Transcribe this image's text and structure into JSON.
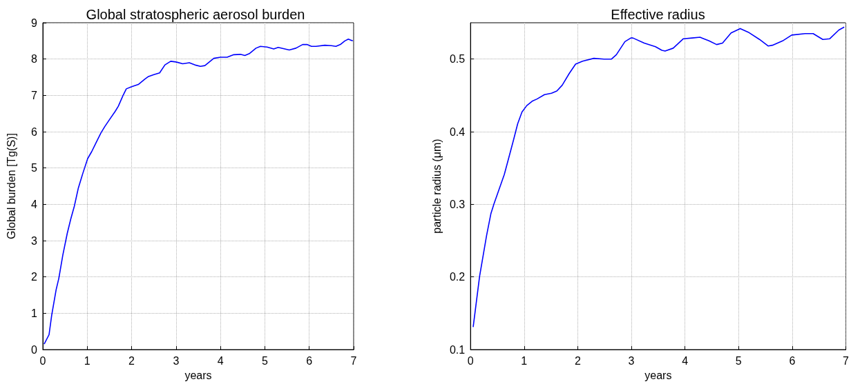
{
  "chart_data": [
    {
      "type": "line",
      "title": "Global stratospheric aerosol burden",
      "xlabel": "years",
      "ylabel": "Global burden [Tg(S)]",
      "color": "#0000ff",
      "marker": "none",
      "grid": true,
      "xlim": [
        0,
        7
      ],
      "ylim": [
        0,
        9
      ],
      "xticks": [
        0,
        1,
        2,
        3,
        4,
        5,
        6,
        7
      ],
      "yticks": [
        0,
        1,
        2,
        3,
        4,
        5,
        6,
        7,
        8,
        9
      ],
      "x": [
        0.03,
        0.14,
        0.2,
        0.3,
        0.36,
        0.45,
        0.55,
        0.63,
        0.71,
        0.8,
        0.9,
        1.01,
        1.1,
        1.2,
        1.31,
        1.4,
        1.5,
        1.63,
        1.7,
        1.8,
        1.88,
        2.0,
        2.15,
        2.3,
        2.38,
        2.5,
        2.63,
        2.75,
        2.88,
        3.0,
        3.15,
        3.3,
        3.45,
        3.55,
        3.65,
        3.75,
        3.85,
        4.0,
        4.15,
        4.3,
        4.45,
        4.55,
        4.65,
        4.8,
        4.9,
        5.05,
        5.2,
        5.3,
        5.45,
        5.55,
        5.7,
        5.85,
        5.95,
        6.05,
        6.15,
        6.35,
        6.5,
        6.6,
        6.7,
        6.8,
        6.88,
        6.98
      ],
      "values": [
        0.15,
        0.41,
        0.95,
        1.65,
        1.96,
        2.6,
        3.2,
        3.6,
        3.95,
        4.45,
        4.85,
        5.26,
        5.45,
        5.7,
        5.97,
        6.15,
        6.33,
        6.56,
        6.7,
        6.98,
        7.18,
        7.24,
        7.3,
        7.45,
        7.52,
        7.57,
        7.62,
        7.84,
        7.94,
        7.92,
        7.87,
        7.9,
        7.83,
        7.8,
        7.82,
        7.92,
        8.02,
        8.05,
        8.05,
        8.12,
        8.13,
        8.1,
        8.15,
        8.3,
        8.35,
        8.33,
        8.28,
        8.32,
        8.28,
        8.25,
        8.3,
        8.4,
        8.4,
        8.35,
        8.35,
        8.38,
        8.37,
        8.35,
        8.4,
        8.5,
        8.55,
        8.5
      ]
    },
    {
      "type": "line",
      "title": "Effective radius",
      "xlabel": "years",
      "ylabel": "particle radius (μm)",
      "color": "#0000ff",
      "marker": "none",
      "grid": true,
      "xlim": [
        0,
        7
      ],
      "ylim": [
        0.1,
        0.55
      ],
      "xticks": [
        0,
        1,
        2,
        3,
        4,
        5,
        6,
        7
      ],
      "yticks": [
        0.1,
        0.2,
        0.3,
        0.4,
        0.5
      ],
      "x": [
        0.05,
        0.17,
        0.3,
        0.38,
        0.44,
        0.63,
        0.71,
        0.8,
        0.88,
        0.96,
        1.05,
        1.15,
        1.24,
        1.38,
        1.51,
        1.61,
        1.71,
        1.84,
        1.96,
        2.09,
        2.3,
        2.49,
        2.63,
        2.72,
        2.88,
        2.99,
        3.03,
        3.24,
        3.45,
        3.57,
        3.63,
        3.78,
        3.97,
        4.13,
        4.28,
        4.45,
        4.59,
        4.7,
        4.86,
        5.03,
        5.18,
        5.39,
        5.55,
        5.63,
        5.82,
        5.99,
        6.24,
        6.39,
        6.57,
        6.7,
        6.87,
        6.97
      ],
      "values": [
        0.131,
        0.201,
        0.257,
        0.287,
        0.301,
        0.341,
        0.363,
        0.388,
        0.411,
        0.427,
        0.436,
        0.442,
        0.445,
        0.451,
        0.453,
        0.456,
        0.464,
        0.48,
        0.493,
        0.497,
        0.501,
        0.5,
        0.5,
        0.506,
        0.524,
        0.529,
        0.529,
        0.522,
        0.517,
        0.512,
        0.511,
        0.515,
        0.528,
        0.529,
        0.53,
        0.525,
        0.52,
        0.522,
        0.536,
        0.542,
        0.537,
        0.527,
        0.518,
        0.519,
        0.525,
        0.533,
        0.535,
        0.535,
        0.527,
        0.528,
        0.54,
        0.544
      ]
    }
  ]
}
